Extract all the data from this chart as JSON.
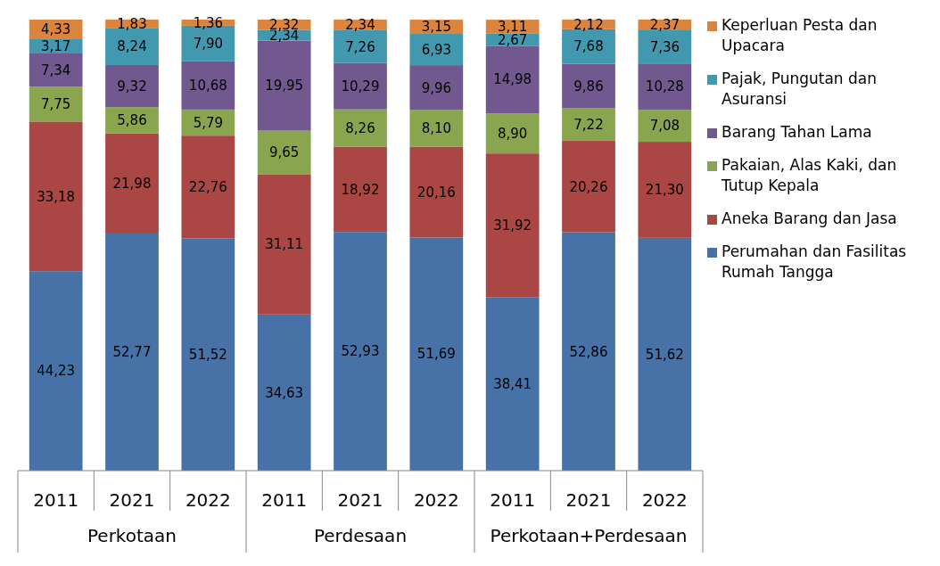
{
  "chart_data": {
    "type": "bar",
    "stacked": true,
    "legend": "right",
    "categories": [
      "2011",
      "2021",
      "2022",
      "2011",
      "2021",
      "2022",
      "2011",
      "2021",
      "2022"
    ],
    "annotations": [
      "Perkotaan",
      "Perdesaan",
      "Perkotaan+Perdesaan"
    ],
    "series": [
      {
        "name": "Perumahan dan Fasilitas Rumah Tangga",
        "color": "#4672a8",
        "values": [
          44.23,
          52.77,
          51.52,
          34.63,
          52.93,
          51.69,
          38.41,
          52.86,
          51.62
        ],
        "value_labels": [
          "44,23",
          "52,77",
          "51,52",
          "34,63",
          "52,93",
          "51,69",
          "38,41",
          "52,86",
          "51,62"
        ]
      },
      {
        "name": "Aneka Barang dan Jasa",
        "color": "#aa4643",
        "values": [
          33.18,
          21.98,
          22.76,
          31.11,
          18.92,
          20.16,
          31.92,
          20.26,
          21.3
        ],
        "value_labels": [
          "33,18",
          "21,98",
          "22,76",
          "31,11",
          "18,92",
          "20,16",
          "31,92",
          "20,26",
          "21,30"
        ]
      },
      {
        "name": "Pakaian, Alas Kaki, dan Tutup Kepala",
        "color": "#89a54e",
        "values": [
          7.75,
          5.86,
          5.79,
          9.65,
          8.26,
          8.1,
          8.9,
          7.22,
          7.08
        ],
        "value_labels": [
          "7,75",
          "5,86",
          "5,79",
          "9,65",
          "8,26",
          "8,10",
          "8,90",
          "7,22",
          "7,08"
        ]
      },
      {
        "name": "Barang Tahan Lama",
        "color": "#71588f",
        "values": [
          7.34,
          9.32,
          10.68,
          19.95,
          10.29,
          9.96,
          14.98,
          9.86,
          10.28
        ],
        "value_labels": [
          "7,34",
          "9,32",
          "10,68",
          "19,95",
          "10,29",
          "9,96",
          "14,98",
          "9,86",
          "10,28"
        ]
      },
      {
        "name": "Pajak, Pungutan dan Asuransi",
        "color": "#4198af",
        "values": [
          3.17,
          8.24,
          7.9,
          2.34,
          7.26,
          6.93,
          2.67,
          7.68,
          7.36
        ],
        "value_labels": [
          "3,17",
          "8,24",
          "7,90",
          "2,34",
          "7,26",
          "6,93",
          "2,67",
          "7,68",
          "7,36"
        ]
      },
      {
        "name": "Keperluan Pesta dan Upacara",
        "color": "#db843d",
        "values": [
          4.33,
          1.83,
          1.36,
          2.32,
          2.34,
          3.15,
          3.11,
          2.12,
          2.37
        ],
        "value_labels": [
          "4,33",
          "1,83",
          "1,36",
          "2,32",
          "2,34",
          "3,15",
          "3,11",
          "2,12",
          "2,37"
        ]
      }
    ]
  }
}
